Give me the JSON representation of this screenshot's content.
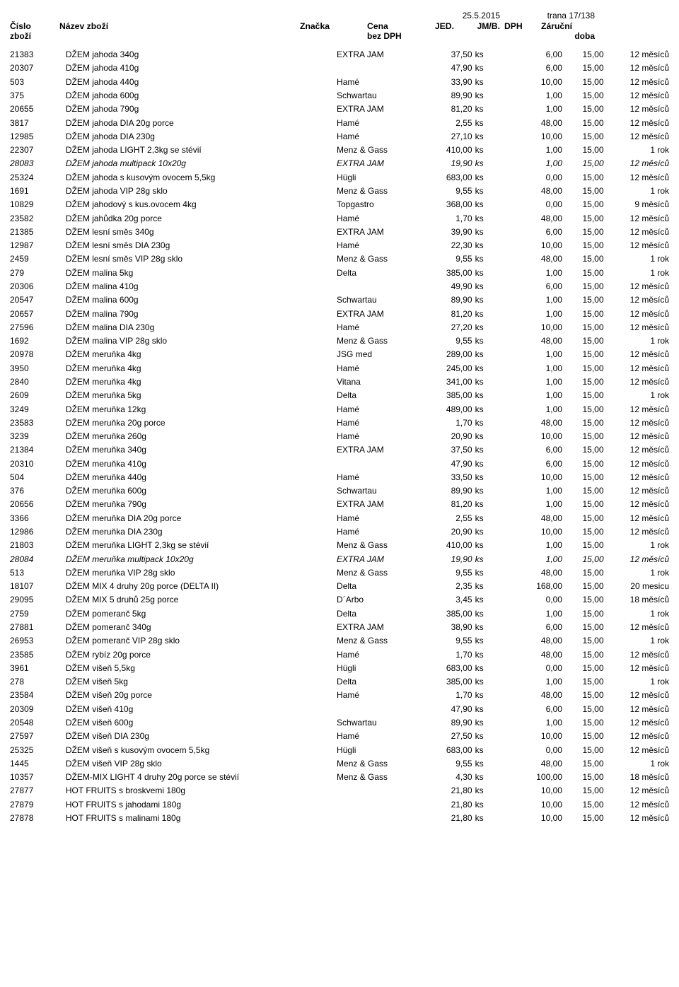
{
  "meta": {
    "date": "25.5.2015",
    "page": "trana 17/138"
  },
  "header": {
    "col_num_1": "Číslo",
    "col_num_2": "zboží",
    "col_name": "Název zboží",
    "col_brand": "Značka",
    "col_price_1": "Cena",
    "col_price_2": "bez DPH",
    "col_jed": "JED.",
    "col_jmb": "JM/B.",
    "col_dph": "DPH",
    "col_war_1": "Záruční",
    "col_war_2": "doba"
  },
  "rows": [
    {
      "num": "21383",
      "name": "DŽEM jahoda 340g",
      "brand": "EXTRA JAM",
      "price": "37,50",
      "jed": "ks",
      "jmb": "6,00",
      "dph": "15,00",
      "war": "12 měsíců"
    },
    {
      "num": "20307",
      "name": "DŽEM jahoda 410g",
      "brand": "",
      "price": "47,90",
      "jed": "ks",
      "jmb": "6,00",
      "dph": "15,00",
      "war": "12 měsíců"
    },
    {
      "num": "503",
      "name": "DŽEM jahoda 440g",
      "brand": "Hamé",
      "price": "33,90",
      "jed": "ks",
      "jmb": "10,00",
      "dph": "15,00",
      "war": "12 měsíců"
    },
    {
      "num": "375",
      "name": "DŽEM jahoda 600g",
      "brand": "Schwartau",
      "price": "89,90",
      "jed": "ks",
      "jmb": "1,00",
      "dph": "15,00",
      "war": "12 měsíců"
    },
    {
      "num": "20655",
      "name": "DŽEM jahoda 790g",
      "brand": "EXTRA JAM",
      "price": "81,20",
      "jed": "ks",
      "jmb": "1,00",
      "dph": "15,00",
      "war": "12 měsíců"
    },
    {
      "num": "3817",
      "name": "DŽEM jahoda DIA 20g porce",
      "brand": "Hamé",
      "price": "2,55",
      "jed": "ks",
      "jmb": "48,00",
      "dph": "15,00",
      "war": "12 měsíců"
    },
    {
      "num": "12985",
      "name": "DŽEM jahoda DIA 230g",
      "brand": "Hamé",
      "price": "27,10",
      "jed": "ks",
      "jmb": "10,00",
      "dph": "15,00",
      "war": "12 měsíců"
    },
    {
      "num": "22307",
      "name": "DŽEM jahoda LIGHT 2,3kg se stévií",
      "brand": "Menz & Gass",
      "price": "410,00",
      "jed": "ks",
      "jmb": "1,00",
      "dph": "15,00",
      "war": "1 rok"
    },
    {
      "num": "28083",
      "name": "DŽEM jahoda multipack 10x20g",
      "brand": "EXTRA JAM",
      "price": "19,90",
      "jed": "ks",
      "jmb": "1,00",
      "dph": "15,00",
      "war": "12 měsíců",
      "italic": true
    },
    {
      "num": "25324",
      "name": "DŽEM jahoda s kusovým ovocem  5,5kg",
      "brand": "Hügli",
      "price": "683,00",
      "jed": "ks",
      "jmb": "0,00",
      "dph": "15,00",
      "war": "12 měsíců"
    },
    {
      "num": "1691",
      "name": "DŽEM jahoda VIP 28g sklo",
      "brand": "Menz & Gass",
      "price": "9,55",
      "jed": "ks",
      "jmb": "48,00",
      "dph": "15,00",
      "war": "1 rok"
    },
    {
      "num": "10829",
      "name": "DŽEM jahodový s kus.ovocem 4kg",
      "brand": "Topgastro",
      "price": "368,00",
      "jed": "ks",
      "jmb": "0,00",
      "dph": "15,00",
      "war": "9 měsíců"
    },
    {
      "num": "23582",
      "name": "DŽEM jahůdka 20g porce",
      "brand": "Hamé",
      "price": "1,70",
      "jed": "ks",
      "jmb": "48,00",
      "dph": "15,00",
      "war": "12 měsíců"
    },
    {
      "num": "21385",
      "name": "DŽEM lesní směs 340g",
      "brand": "EXTRA JAM",
      "price": "39,90",
      "jed": "ks",
      "jmb": "6,00",
      "dph": "15,00",
      "war": "12 měsíců"
    },
    {
      "num": "12987",
      "name": "DŽEM lesní směs DIA 230g",
      "brand": "Hamé",
      "price": "22,30",
      "jed": "ks",
      "jmb": "10,00",
      "dph": "15,00",
      "war": "12 měsíců"
    },
    {
      "num": "2459",
      "name": "DŽEM lesní směs VIP 28g sklo",
      "brand": "Menz & Gass",
      "price": "9,55",
      "jed": "ks",
      "jmb": "48,00",
      "dph": "15,00",
      "war": "1 rok"
    },
    {
      "num": "279",
      "name": "DŽEM malina  5kg",
      "brand": "Delta",
      "price": "385,00",
      "jed": "ks",
      "jmb": "1,00",
      "dph": "15,00",
      "war": "1 rok"
    },
    {
      "num": "20306",
      "name": "DŽEM malina 410g",
      "brand": "",
      "price": "49,90",
      "jed": "ks",
      "jmb": "6,00",
      "dph": "15,00",
      "war": "12 měsíců"
    },
    {
      "num": "20547",
      "name": "DŽEM malina 600g",
      "brand": "Schwartau",
      "price": "89,90",
      "jed": "ks",
      "jmb": "1,00",
      "dph": "15,00",
      "war": "12 měsíců"
    },
    {
      "num": "20657",
      "name": "DŽEM malina 790g",
      "brand": "EXTRA JAM",
      "price": "81,20",
      "jed": "ks",
      "jmb": "1,00",
      "dph": "15,00",
      "war": "12 měsíců"
    },
    {
      "num": "27596",
      "name": "DŽEM malina DIA 230g",
      "brand": "Hamé",
      "price": "27,20",
      "jed": "ks",
      "jmb": "10,00",
      "dph": "15,00",
      "war": "12 měsíců"
    },
    {
      "num": "1692",
      "name": "DŽEM malina VIP 28g sklo",
      "brand": "Menz & Gass",
      "price": "9,55",
      "jed": "ks",
      "jmb": "48,00",
      "dph": "15,00",
      "war": "1 rok"
    },
    {
      "num": "20978",
      "name": "DŽEM meruňka   4kg",
      "brand": "JSG med",
      "price": "289,00",
      "jed": "ks",
      "jmb": "1,00",
      "dph": "15,00",
      "war": "12 měsíců"
    },
    {
      "num": "3950",
      "name": "DŽEM meruňka   4kg",
      "brand": "Hamé",
      "price": "245,00",
      "jed": "ks",
      "jmb": "1,00",
      "dph": "15,00",
      "war": "12 měsíců"
    },
    {
      "num": "2840",
      "name": "DŽEM meruňka   4kg",
      "brand": "Vitana",
      "price": "341,00",
      "jed": "ks",
      "jmb": "1,00",
      "dph": "15,00",
      "war": "12 měsíců"
    },
    {
      "num": "2609",
      "name": "DŽEM meruňka   5kg",
      "brand": "Delta",
      "price": "385,00",
      "jed": "ks",
      "jmb": "1,00",
      "dph": "15,00",
      "war": "1 rok"
    },
    {
      "num": "3249",
      "name": "DŽEM meruňka  12kg",
      "brand": "Hamé",
      "price": "489,00",
      "jed": "ks",
      "jmb": "1,00",
      "dph": "15,00",
      "war": "12 měsíců"
    },
    {
      "num": "23583",
      "name": "DŽEM meruňka 20g porce",
      "brand": "Hamé",
      "price": "1,70",
      "jed": "ks",
      "jmb": "48,00",
      "dph": "15,00",
      "war": "12 měsíců"
    },
    {
      "num": "3239",
      "name": "DŽEM meruňka 260g",
      "brand": "Hamé",
      "price": "20,90",
      "jed": "ks",
      "jmb": "10,00",
      "dph": "15,00",
      "war": "12 měsíců"
    },
    {
      "num": "21384",
      "name": "DŽEM meruňka 340g",
      "brand": "EXTRA JAM",
      "price": "37,50",
      "jed": "ks",
      "jmb": "6,00",
      "dph": "15,00",
      "war": "12 měsíců"
    },
    {
      "num": "20310",
      "name": "DŽEM meruňka 410g",
      "brand": "",
      "price": "47,90",
      "jed": "ks",
      "jmb": "6,00",
      "dph": "15,00",
      "war": "12 měsíců"
    },
    {
      "num": "504",
      "name": "DŽEM meruňka 440g",
      "brand": "Hamé",
      "price": "33,50",
      "jed": "ks",
      "jmb": "10,00",
      "dph": "15,00",
      "war": "12 měsíců"
    },
    {
      "num": "376",
      "name": "DŽEM meruňka 600g",
      "brand": "Schwartau",
      "price": "89,90",
      "jed": "ks",
      "jmb": "1,00",
      "dph": "15,00",
      "war": "12 měsíců"
    },
    {
      "num": "20656",
      "name": "DŽEM meruňka 790g",
      "brand": "EXTRA JAM",
      "price": "81,20",
      "jed": "ks",
      "jmb": "1,00",
      "dph": "15,00",
      "war": "12 měsíců"
    },
    {
      "num": "3366",
      "name": "DŽEM meruňka DIA 20g porce",
      "brand": "Hamé",
      "price": "2,55",
      "jed": "ks",
      "jmb": "48,00",
      "dph": "15,00",
      "war": "12 měsíců"
    },
    {
      "num": "12986",
      "name": "DŽEM meruňka DIA 230g",
      "brand": "Hamé",
      "price": "20,90",
      "jed": "ks",
      "jmb": "10,00",
      "dph": "15,00",
      "war": "12 měsíců"
    },
    {
      "num": "21803",
      "name": "DŽEM meruňka LIGHT 2,3kg se stévií",
      "brand": "Menz & Gass",
      "price": "410,00",
      "jed": "ks",
      "jmb": "1,00",
      "dph": "15,00",
      "war": "1 rok"
    },
    {
      "num": "28084",
      "name": "DŽEM meruňka multipack 10x20g",
      "brand": "EXTRA JAM",
      "price": "19,90",
      "jed": "ks",
      "jmb": "1,00",
      "dph": "15,00",
      "war": "12 měsíců",
      "italic": true
    },
    {
      "num": "513",
      "name": "DŽEM meruňka VIP 28g sklo",
      "brand": "Menz & Gass",
      "price": "9,55",
      "jed": "ks",
      "jmb": "48,00",
      "dph": "15,00",
      "war": "1 rok"
    },
    {
      "num": "18107",
      "name": "DŽEM MIX 4 druhy 20g porce (DELTA II)",
      "brand": "Delta",
      "price": "2,35",
      "jed": "ks",
      "jmb": "168,00",
      "dph": "15,00",
      "war": "20 mesicu"
    },
    {
      "num": "29095",
      "name": "DŽEM MIX 5 druhů 25g porce",
      "brand": "D´Arbo",
      "price": "3,45",
      "jed": "ks",
      "jmb": "0,00",
      "dph": "15,00",
      "war": "18 měsíců"
    },
    {
      "num": "2759",
      "name": "DŽEM pomeranč  5kg",
      "brand": "Delta",
      "price": "385,00",
      "jed": "ks",
      "jmb": "1,00",
      "dph": "15,00",
      "war": "1 rok"
    },
    {
      "num": "27881",
      "name": "DŽEM pomeranč 340g",
      "brand": "EXTRA JAM",
      "price": "38,90",
      "jed": "ks",
      "jmb": "6,00",
      "dph": "15,00",
      "war": "12 měsíců"
    },
    {
      "num": "26953",
      "name": "DŽEM pomeranč VIP 28g sklo",
      "brand": "Menz & Gass",
      "price": "9,55",
      "jed": "ks",
      "jmb": "48,00",
      "dph": "15,00",
      "war": "1 rok"
    },
    {
      "num": "23585",
      "name": "DŽEM rybíz 20g porce",
      "brand": "Hamé",
      "price": "1,70",
      "jed": "ks",
      "jmb": "48,00",
      "dph": "15,00",
      "war": "12 měsíců"
    },
    {
      "num": "3961",
      "name": "DŽEM višeň  5,5kg",
      "brand": "Hügli",
      "price": "683,00",
      "jed": "ks",
      "jmb": "0,00",
      "dph": "15,00",
      "war": "12 měsíců"
    },
    {
      "num": "278",
      "name": "DŽEM višeň  5kg",
      "brand": "Delta",
      "price": "385,00",
      "jed": "ks",
      "jmb": "1,00",
      "dph": "15,00",
      "war": "1 rok"
    },
    {
      "num": "23584",
      "name": "DŽEM višeň 20g porce",
      "brand": "Hamé",
      "price": "1,70",
      "jed": "ks",
      "jmb": "48,00",
      "dph": "15,00",
      "war": "12 měsíců"
    },
    {
      "num": "20309",
      "name": "DŽEM višeň 410g",
      "brand": "",
      "price": "47,90",
      "jed": "ks",
      "jmb": "6,00",
      "dph": "15,00",
      "war": "12 měsíců"
    },
    {
      "num": "20548",
      "name": "DŽEM višeň 600g",
      "brand": "Schwartau",
      "price": "89,90",
      "jed": "ks",
      "jmb": "1,00",
      "dph": "15,00",
      "war": "12 měsíců"
    },
    {
      "num": "27597",
      "name": "DŽEM višeň DIA 230g",
      "brand": "Hamé",
      "price": "27,50",
      "jed": "ks",
      "jmb": "10,00",
      "dph": "15,00",
      "war": "12 měsíců"
    },
    {
      "num": "25325",
      "name": "DŽEM višeň s kusovým ovocem  5,5kg",
      "brand": "Hügli",
      "price": "683,00",
      "jed": "ks",
      "jmb": "0,00",
      "dph": "15,00",
      "war": "12 měsíců"
    },
    {
      "num": "1445",
      "name": "DŽEM višeň VIP 28g sklo",
      "brand": "Menz & Gass",
      "price": "9,55",
      "jed": "ks",
      "jmb": "48,00",
      "dph": "15,00",
      "war": "1 rok"
    },
    {
      "num": "10357",
      "name": "DŽEM-MIX LIGHT 4 druhy 20g porce se stévií",
      "brand": "Menz & Gass",
      "price": "4,30",
      "jed": "ks",
      "jmb": "100,00",
      "dph": "15,00",
      "war": "18 měsíců"
    },
    {
      "num": "27877",
      "name": "HOT FRUITS s broskvemi 180g",
      "brand": "",
      "price": "21,80",
      "jed": "ks",
      "jmb": "10,00",
      "dph": "15,00",
      "war": "12 měsíců"
    },
    {
      "num": "27879",
      "name": "HOT FRUITS s jahodami 180g",
      "brand": "",
      "price": "21,80",
      "jed": "ks",
      "jmb": "10,00",
      "dph": "15,00",
      "war": "12 měsíců"
    },
    {
      "num": "27878",
      "name": "HOT FRUITS s malinami 180g",
      "brand": "",
      "price": "21,80",
      "jed": "ks",
      "jmb": "10,00",
      "dph": "15,00",
      "war": "12 měsíců"
    }
  ]
}
